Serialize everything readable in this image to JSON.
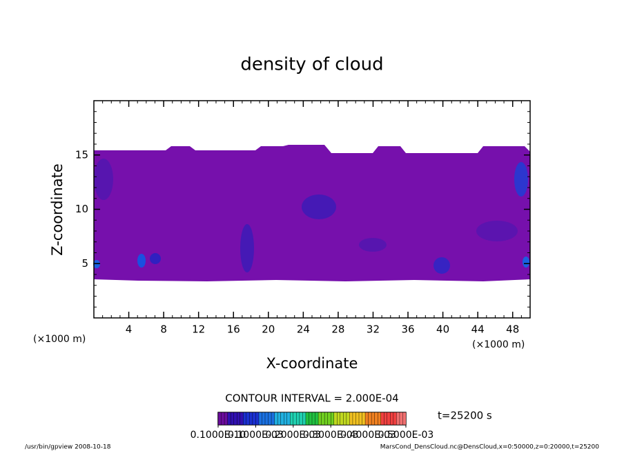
{
  "chart_data": {
    "type": "contour",
    "title": "density of cloud",
    "x_label": "X-coordinate",
    "y_label": "Z-coordinate",
    "x_unit": "(×1000 m)",
    "y_unit": "(×1000 m)",
    "xlim": [
      0,
      50
    ],
    "xticks": [
      4,
      8,
      12,
      16,
      20,
      24,
      28,
      32,
      36,
      40,
      44,
      48
    ],
    "ylim": [
      0,
      20
    ],
    "yticks": [
      5,
      10,
      15
    ],
    "contour_interval": "CONTOUR INTERVAL = 2.000E-04",
    "time_label": "t=25200 s",
    "colorbar_lim": [
      0,
      0.0005
    ],
    "colorbar_ticks": [
      {
        "value": 0,
        "label": "0.1000E-10"
      },
      {
        "value": 0.0001,
        "label": "0.1000E-03"
      },
      {
        "value": 0.0002,
        "label": "0.2000E-03"
      },
      {
        "value": 0.0003,
        "label": "0.3000E-03"
      },
      {
        "value": 0.0004,
        "label": "0.4000E-03"
      },
      {
        "value": 0.0005,
        "label": "0.5000E-03"
      }
    ],
    "colormap": [
      "#6a0c9c",
      "#3010b0",
      "#1a30d0",
      "#1a70e0",
      "#20b0e0",
      "#20d0b0",
      "#20c040",
      "#70d020",
      "#c0d820",
      "#f0c020",
      "#f08020",
      "#f04040",
      "#f07070"
    ],
    "footer_left": "/usr/bin/gpview   2008-10-18",
    "footer_right": "MarsCond_DensCloud.nc@DensCloud,x=0:50000,z=0:20000,t=25200"
  }
}
